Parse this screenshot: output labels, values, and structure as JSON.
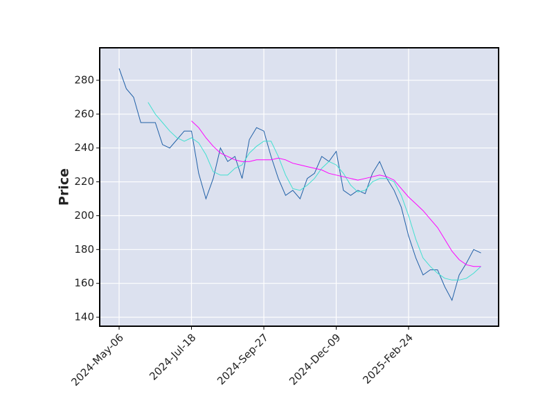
{
  "chart_data": {
    "type": "line",
    "ylabel": "Price",
    "categories": [
      "2024-May-06",
      null,
      null,
      null,
      null,
      null,
      null,
      null,
      null,
      null,
      "2024-Jul-18",
      null,
      null,
      null,
      null,
      null,
      null,
      null,
      null,
      null,
      "2024-Sep-27",
      null,
      null,
      null,
      null,
      null,
      null,
      null,
      null,
      null,
      "2024-Dec-09",
      null,
      null,
      null,
      null,
      null,
      null,
      null,
      null,
      null,
      "2025-Feb-24",
      null,
      null,
      null,
      null,
      null,
      null,
      null,
      null,
      null,
      null
    ],
    "series": [
      {
        "color": "#1f5fa6",
        "values": [
          287,
          275,
          270,
          255,
          255,
          255,
          242,
          240,
          245,
          250,
          250,
          225,
          210,
          222,
          240,
          232,
          235,
          222,
          245,
          252,
          250,
          235,
          222,
          212,
          215,
          210,
          222,
          225,
          235,
          232,
          238,
          215,
          212,
          215,
          213,
          225,
          232,
          222,
          215,
          205,
          188,
          175,
          165,
          168,
          168,
          158,
          150,
          165,
          172,
          180,
          178
        ]
      },
      {
        "color": "#40e0d0",
        "values": [
          null,
          null,
          null,
          null,
          267,
          260,
          255,
          250,
          246,
          244,
          246,
          243,
          236,
          226,
          224,
          224,
          228,
          230,
          237,
          241,
          244,
          244,
          235,
          224,
          216,
          215,
          218,
          222,
          228,
          232,
          230,
          225,
          218,
          214,
          215,
          220,
          222,
          222,
          220,
          212,
          200,
          186,
          175,
          170,
          166,
          163,
          162,
          162,
          163,
          166,
          170
        ]
      },
      {
        "color": "#ff00ff",
        "values": [
          null,
          null,
          null,
          null,
          null,
          null,
          null,
          null,
          null,
          null,
          256,
          252,
          246,
          241,
          237,
          235,
          233,
          232,
          232,
          233,
          233,
          233,
          234,
          233,
          231,
          230,
          229,
          228,
          227,
          225,
          224,
          223,
          222,
          221,
          222,
          223,
          224,
          223,
          221,
          216,
          211,
          207,
          203,
          198,
          193,
          186,
          179,
          174,
          171,
          170,
          170
        ]
      }
    ],
    "ylim": [
      134.7,
      299.2
    ],
    "yticks": [
      140,
      160,
      180,
      200,
      220,
      240,
      260,
      280
    ],
    "grid": true,
    "background": "#dce1ef"
  }
}
